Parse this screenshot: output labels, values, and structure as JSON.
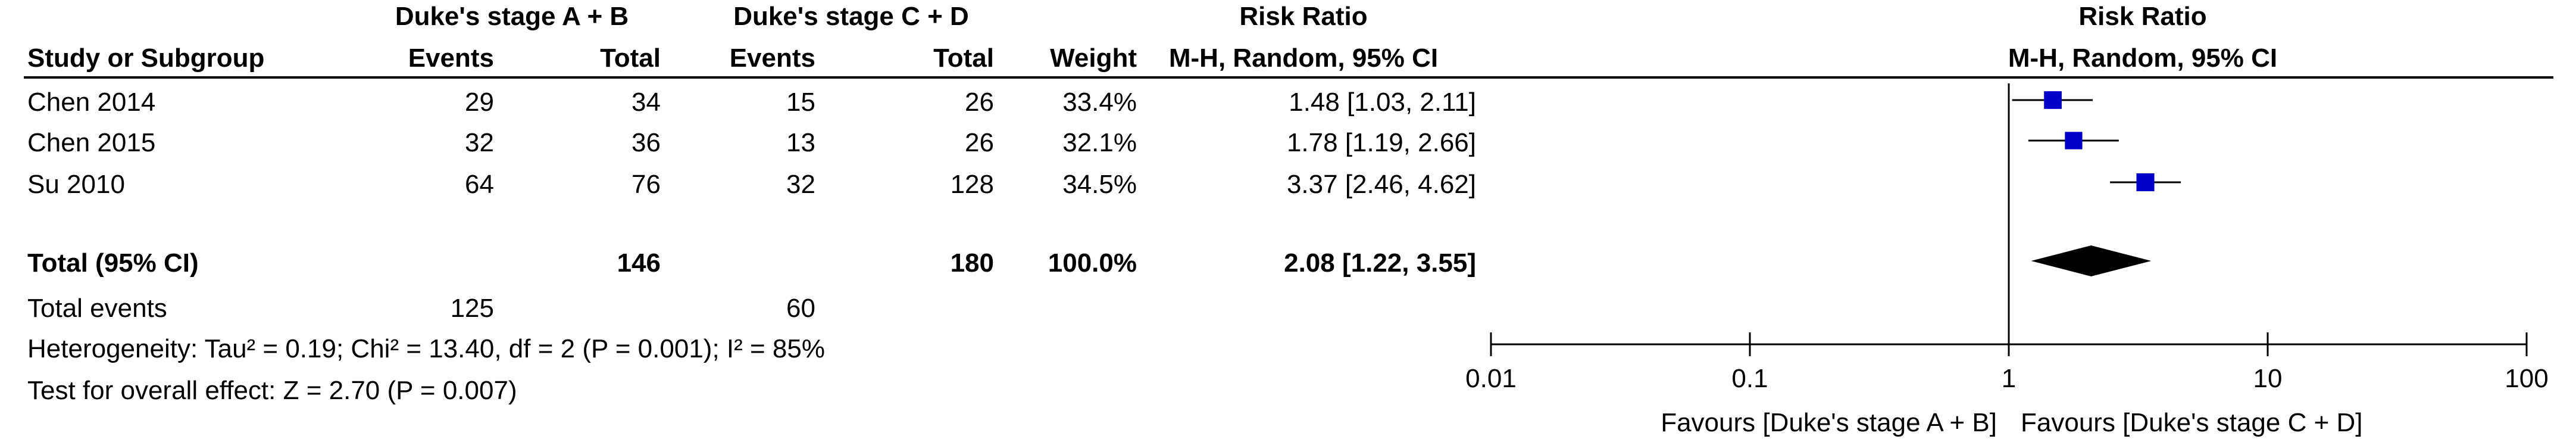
{
  "header": {
    "group1": "Duke's stage A + B",
    "group2": "Duke's stage C + D",
    "rr_title": "Risk Ratio",
    "col_study": "Study or Subgroup",
    "col_events1": "Events",
    "col_total1": "Total",
    "col_events2": "Events",
    "col_total2": "Total",
    "col_weight": "Weight",
    "col_method": "M-H, Random, 95% CI",
    "plot_title": "Risk Ratio",
    "plot_method": "M-H, Random, 95% CI"
  },
  "rows": [
    {
      "study": "Chen 2014",
      "e1": "29",
      "t1": "34",
      "e2": "15",
      "t2": "26",
      "weight": "33.4%",
      "ci": "1.48 [1.03, 2.11]"
    },
    {
      "study": "Chen 2015",
      "e1": "32",
      "t1": "36",
      "e2": "13",
      "t2": "26",
      "weight": "32.1%",
      "ci": "1.78 [1.19, 2.66]"
    },
    {
      "study": "Su 2010",
      "e1": "64",
      "t1": "76",
      "e2": "32",
      "t2": "128",
      "weight": "34.5%",
      "ci": "3.37 [2.46, 4.62]"
    }
  ],
  "total": {
    "label": "Total (95% CI)",
    "t1": "146",
    "t2": "180",
    "weight": "100.0%",
    "ci": "2.08 [1.22, 3.55]"
  },
  "events": {
    "label": "Total events",
    "e1": "125",
    "e2": "60"
  },
  "heterogeneity": "Heterogeneity: Tau² = 0.19; Chi² = 13.40, df = 2 (P = 0.001); I² = 85%",
  "overall": "Test for overall effect: Z = 2.70 (P = 0.007)",
  "chart_data": {
    "type": "scatter",
    "subtype": "forest-plot",
    "x_scale": "log",
    "xlim": [
      0.01,
      100
    ],
    "ticks": [
      {
        "value": 0.01,
        "label": "0.01"
      },
      {
        "value": 0.1,
        "label": "0.1"
      },
      {
        "value": 1,
        "label": "1"
      },
      {
        "value": 10,
        "label": "10"
      },
      {
        "value": 100,
        "label": "100"
      }
    ],
    "null_value": 1,
    "studies": [
      {
        "name": "Chen 2014",
        "rr": 1.48,
        "lo": 1.03,
        "hi": 2.11,
        "weight": 33.4
      },
      {
        "name": "Chen 2015",
        "rr": 1.78,
        "lo": 1.19,
        "hi": 2.66,
        "weight": 32.1
      },
      {
        "name": "Su 2010",
        "rr": 3.37,
        "lo": 2.46,
        "hi": 4.62,
        "weight": 34.5
      }
    ],
    "pooled": {
      "rr": 2.08,
      "lo": 1.22,
      "hi": 3.55
    },
    "favours_left": "Favours [Duke's stage A + B]",
    "favours_right": "Favours [Duke's stage C + D]",
    "marker_color": "#0000c8"
  }
}
